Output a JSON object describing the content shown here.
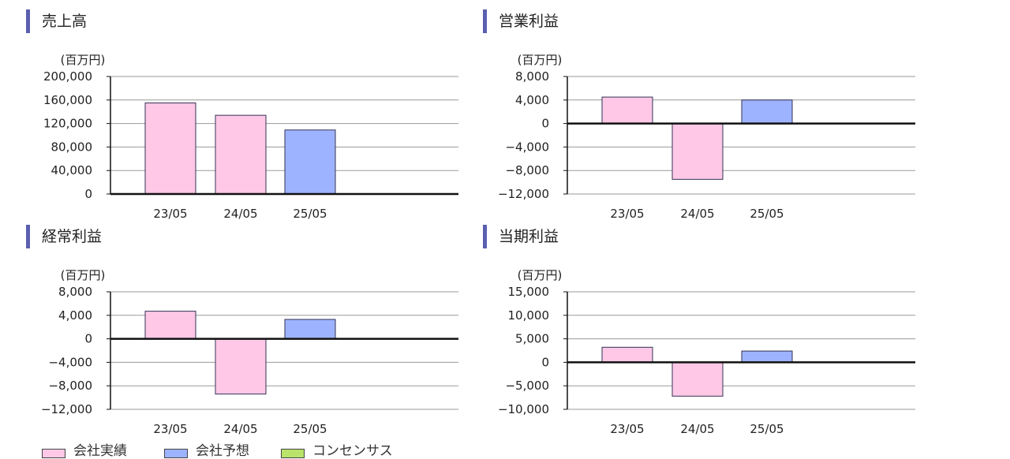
{
  "colors": {
    "actual": "#ffc8e6",
    "forecast": "#9eb3ff",
    "consensus": "#b9e36b",
    "title_bar": "#5a5fb0",
    "grid": "#9a9a9a",
    "axis": "#111111"
  },
  "legend": {
    "actual": "会社実績",
    "forecast": "会社予想",
    "consensus": "コンセンサス"
  },
  "chart_data": [
    {
      "type": "bar",
      "title": "売上高",
      "unit": "(百万円)",
      "categories": [
        "23/05",
        "24/05",
        "25/05"
      ],
      "values": [
        155000,
        134000,
        109000
      ],
      "kinds": [
        "actual",
        "actual",
        "forecast"
      ],
      "ylim": [
        0,
        200000
      ],
      "yticks": [
        200000,
        160000,
        120000,
        80000,
        40000,
        0
      ],
      "ytick_labels": [
        "200,000",
        "160,000",
        "120,000",
        "80,000",
        "40,000",
        "0"
      ],
      "grid": true
    },
    {
      "type": "bar",
      "title": "営業利益",
      "unit": "(百万円)",
      "categories": [
        "23/05",
        "24/05",
        "25/05"
      ],
      "values": [
        4500,
        -9500,
        4000
      ],
      "kinds": [
        "actual",
        "actual",
        "forecast"
      ],
      "ylim": [
        -12000,
        8000
      ],
      "yticks": [
        8000,
        4000,
        0,
        -4000,
        -8000,
        -12000
      ],
      "ytick_labels": [
        "8,000",
        "4,000",
        "0",
        "−4,000",
        "−8,000",
        "−12,000"
      ],
      "grid": true
    },
    {
      "type": "bar",
      "title": "経常利益",
      "unit": "(百万円)",
      "categories": [
        "23/05",
        "24/05",
        "25/05"
      ],
      "values": [
        4700,
        -9400,
        3300
      ],
      "kinds": [
        "actual",
        "actual",
        "forecast"
      ],
      "ylim": [
        -12000,
        8000
      ],
      "yticks": [
        8000,
        4000,
        0,
        -4000,
        -8000,
        -12000
      ],
      "ytick_labels": [
        "8,000",
        "4,000",
        "0",
        "−4,000",
        "−8,000",
        "−12,000"
      ],
      "grid": true
    },
    {
      "type": "bar",
      "title": "当期利益",
      "unit": "(百万円)",
      "categories": [
        "23/05",
        "24/05",
        "25/05"
      ],
      "values": [
        3200,
        -7200,
        2400
      ],
      "kinds": [
        "actual",
        "actual",
        "forecast"
      ],
      "ylim": [
        -10000,
        15000
      ],
      "yticks": [
        15000,
        10000,
        5000,
        0,
        -5000,
        -10000
      ],
      "ytick_labels": [
        "15,000",
        "10,000",
        "5,000",
        "0",
        "−5,000",
        "−10,000"
      ],
      "grid": true
    }
  ]
}
